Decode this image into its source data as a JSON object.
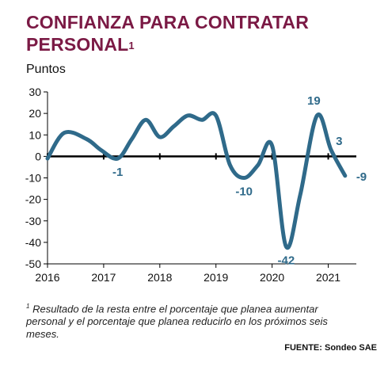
{
  "title": {
    "text": "CONFIANZA PARA CONTRATAR PERSONAL",
    "footnote_marker": "1"
  },
  "unit_label": "Puntos",
  "footnote": {
    "marker": "1",
    "text": "Resultado de la resta entre el porcentaje que planea aumentar personal y el porcentaje que planea reducirlo en los próximos seis meses."
  },
  "source": "FUENTE: Sondeo SAE",
  "colors": {
    "title": "#7b1a45",
    "line": "#2f6a8a",
    "label": "#2f6a8a",
    "axis": "#000000",
    "grid": "#bfbfbf"
  },
  "chart_data": {
    "type": "line",
    "title": "CONFIANZA PARA CONTRATAR PERSONAL",
    "ylabel": "Puntos",
    "xlabel": "",
    "ylim": [
      -50,
      30
    ],
    "xlim": [
      2016,
      2021.5
    ],
    "yticks": [
      30,
      20,
      10,
      0,
      -10,
      -20,
      -30,
      -40,
      -50
    ],
    "xticks": [
      "2016",
      "2017",
      "2018",
      "2019",
      "2020",
      "2021"
    ],
    "grid": false,
    "series": [
      {
        "x": [
          2016.0,
          2016.3,
          2016.7,
          2016.95,
          2017.25,
          2017.5,
          2017.75,
          2018.0,
          2018.25,
          2018.5,
          2018.75,
          2019.0,
          2019.25,
          2019.5,
          2019.75,
          2020.0,
          2020.25,
          2020.5,
          2020.8,
          2021.05,
          2021.3
        ],
        "y": [
          -1,
          11,
          8,
          3,
          -1,
          8,
          17,
          9,
          14,
          19,
          17,
          19,
          -4,
          -10,
          -4,
          5,
          -42,
          -18,
          19,
          3,
          -9
        ]
      }
    ],
    "annotations": [
      {
        "text": "-1",
        "x": 2017.25,
        "y": -1
      },
      {
        "text": "-10",
        "x": 2019.5,
        "y": -10
      },
      {
        "text": "-42",
        "x": 2020.25,
        "y": -42
      },
      {
        "text": "19",
        "x": 2020.8,
        "y": 19
      },
      {
        "text": "3",
        "x": 2021.05,
        "y": 3
      },
      {
        "text": "-9",
        "x": 2021.3,
        "y": -9
      }
    ]
  }
}
